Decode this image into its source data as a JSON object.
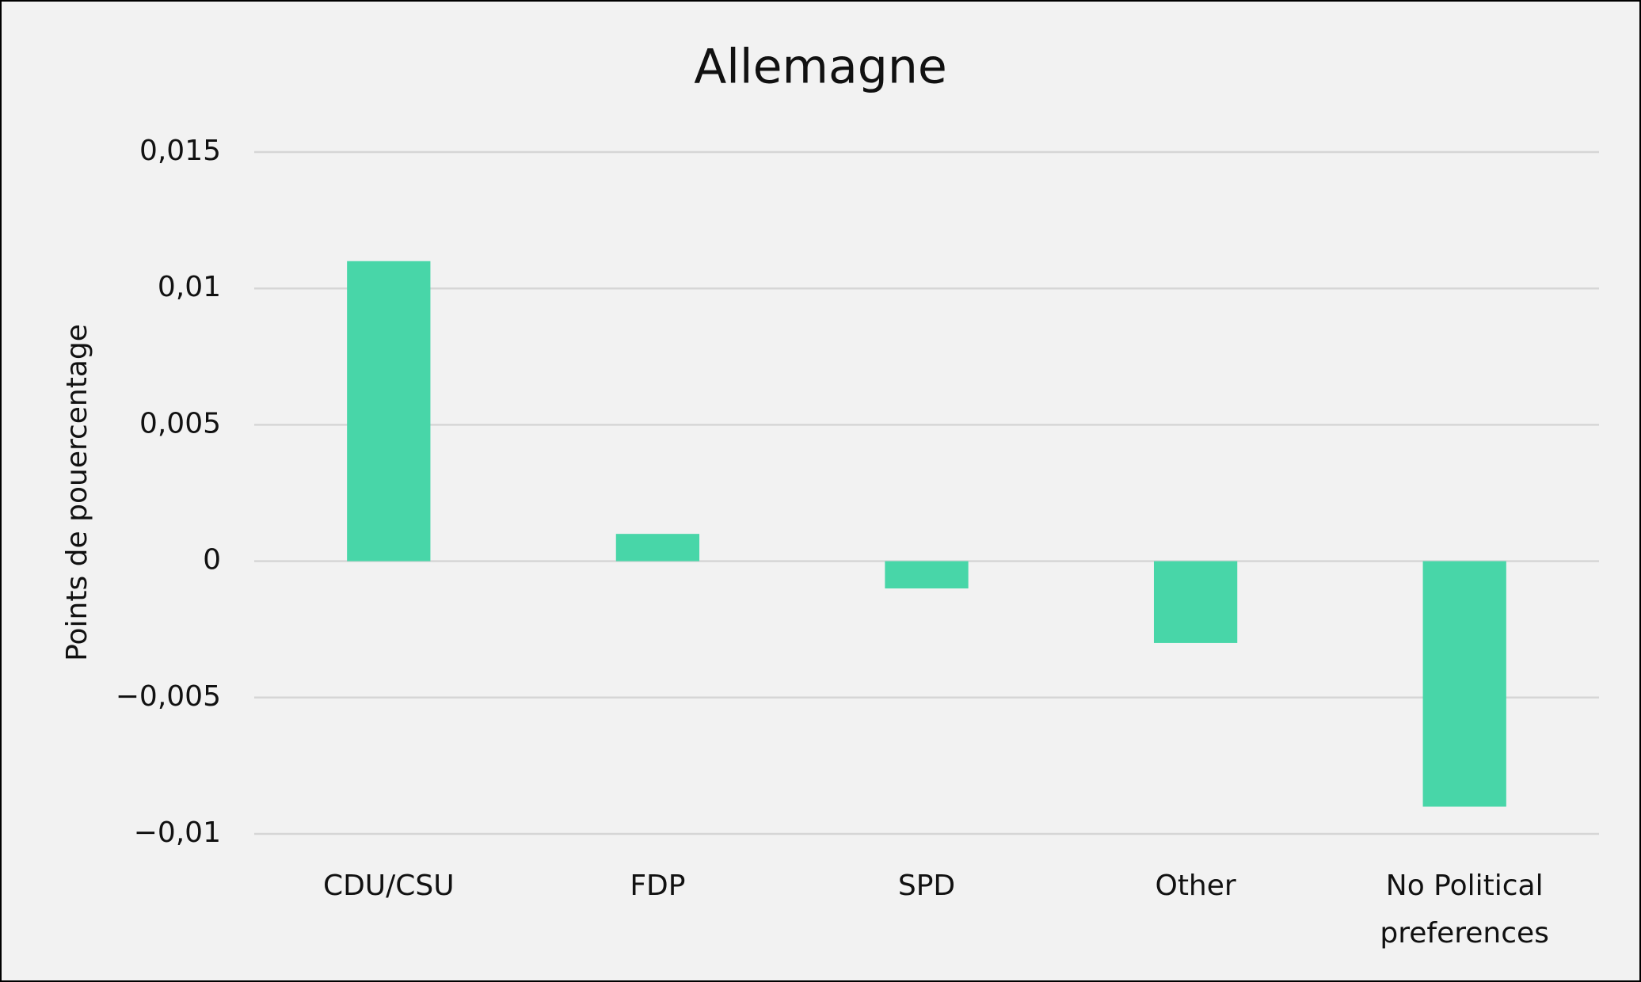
{
  "chart_data": {
    "type": "bar",
    "title": "Allemagne",
    "y_label": "Points de pouercentage",
    "categories": [
      "CDU/CSU",
      "FDP",
      "SPD",
      "Other",
      "No Political preferences"
    ],
    "values": [
      0.011,
      0.001,
      -0.001,
      -0.003,
      -0.009
    ],
    "color": "#48d6a8",
    "ylim": [
      -0.01,
      0.015
    ],
    "yticks": [
      {
        "value": -0.01,
        "label": "−0,01"
      },
      {
        "value": -0.005,
        "label": "−0,005"
      },
      0,
      {
        "value": 0.005,
        "label": "0,005"
      },
      {
        "value": 0.01,
        "label": "0,01"
      },
      {
        "value": 0.015,
        "label": "0,015"
      }
    ],
    "grid": true
  }
}
